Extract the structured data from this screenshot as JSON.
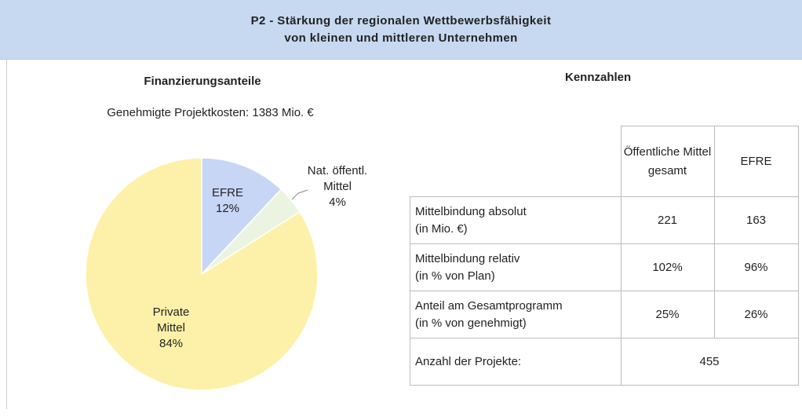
{
  "header": {
    "lines": [
      "P2 - Stärkung der regionalen Wettbewerbsfähigkeit",
      "von kleinen und mittleren Unternehmen"
    ]
  },
  "chart_data": {
    "type": "pie",
    "title": "Finanzierungsanteile",
    "subtitle": "Genehmigte Projektkosten: 1383 Mio. €",
    "categories": [
      "EFRE",
      "Nat. öffentl. Mittel",
      "Private Mittel"
    ],
    "values": [
      12,
      4,
      84
    ],
    "value_labels": [
      "12%",
      "4%",
      "84%"
    ],
    "colors": [
      "#c8d6f6",
      "#ebf4e0",
      "#fdf1a9"
    ]
  },
  "table": {
    "title": "Kennzahlen",
    "columns": [
      "Öffentliche Mittel gesamt",
      "EFRE"
    ],
    "rows": [
      {
        "label": "Mittelbindung absolut",
        "sublabel": "(in Mio. €)",
        "cells": [
          "221",
          "163"
        ]
      },
      {
        "label": "Mittelbindung relativ",
        "sublabel": "(in % von Plan)",
        "cells": [
          "102%",
          "96%"
        ]
      },
      {
        "label": "Anteil am Gesamtprogramm",
        "sublabel": "(in % von genehmigt)",
        "cells": [
          "25%",
          "26%"
        ]
      }
    ],
    "last_row": {
      "label": "Anzahl der Projekte:",
      "value": "455"
    }
  }
}
